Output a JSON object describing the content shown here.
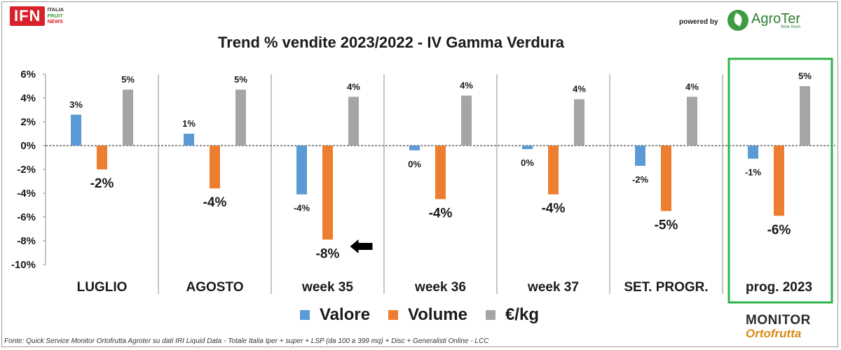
{
  "header": {
    "ifn_logo": "IFN",
    "ifn_line1": "ITALIA",
    "ifn_line2": "FRUIT",
    "ifn_line3": "NEWS",
    "powered_by": "powered by",
    "agroter_name": "AgroTer",
    "agroter_tagline": "think fresh"
  },
  "footer": {
    "source": "Fonte: Quick Service Monitor Ortofrutta Agroter su dati IRI Liquid Data - Totale Italia Iper + super + LSP (da 100 a 399 mq) + Disc + Generalisti Online - LCC",
    "monitor_line1": "MONITOR",
    "monitor_line2": "Ortofrutta"
  },
  "colors": {
    "valore": "#5b9bd5",
    "volume": "#ed7d31",
    "prezzo": "#a5a5a5",
    "highlight_border": "#2fb34a"
  },
  "chart_data": {
    "type": "bar",
    "title": "Trend % vendite 2023/2022 - IV Gamma Verdura",
    "categories": [
      "LUGLIO",
      "AGOSTO",
      "week 35",
      "week 36",
      "week 37",
      "SET. PROGR.",
      "prog. 2023"
    ],
    "series": [
      {
        "name": "Valore",
        "values": [
          2.6,
          1.0,
          -4.1,
          -0.4,
          -0.3,
          -1.7,
          -1.1
        ],
        "labels": [
          "3%",
          "1%",
          "-4%",
          "0%",
          "0%",
          "-2%",
          "-1%"
        ]
      },
      {
        "name": "Volume",
        "values": [
          -2.0,
          -3.6,
          -7.9,
          -4.5,
          -4.1,
          -5.5,
          -5.9
        ],
        "labels": [
          "-2%",
          "-4%",
          "-8%",
          "-4%",
          "-4%",
          "-5%",
          "-6%"
        ]
      },
      {
        "name": "€/kg",
        "values": [
          4.7,
          4.7,
          4.1,
          4.2,
          3.9,
          4.1,
          5.0
        ],
        "labels": [
          "5%",
          "5%",
          "4%",
          "4%",
          "4%",
          "4%",
          "5%"
        ]
      }
    ],
    "y_ticks": [
      "6%",
      "4%",
      "2%",
      "0%",
      "-2%",
      "-4%",
      "-6%",
      "-8%",
      "-10%"
    ],
    "ylim": [
      -10,
      6
    ],
    "highlighted_category": "prog. 2023",
    "arrow_annotation_category": "week 35",
    "legend_position": "bottom"
  }
}
